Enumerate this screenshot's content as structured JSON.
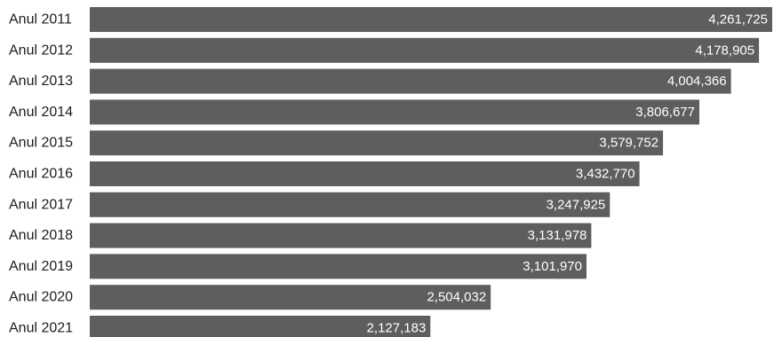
{
  "chart_data": {
    "type": "bar",
    "orientation": "horizontal",
    "categories": [
      "Anul 2011",
      "Anul 2012",
      "Anul 2013",
      "Anul 2014",
      "Anul 2015",
      "Anul 2016",
      "Anul 2017",
      "Anul 2018",
      "Anul 2019",
      "Anul 2020",
      "Anul 2021"
    ],
    "values": [
      4261725,
      4178905,
      4004366,
      3806677,
      3579752,
      3432770,
      3247925,
      3131978,
      3101970,
      2504032,
      2127183
    ],
    "data_labels": [
      "4,261,725",
      "4,178,905",
      "4,004,366",
      "3,806,677",
      "3,579,752",
      "3,432,770",
      "3,247,925",
      "3,131,978",
      "3,101,970",
      "2,504,032",
      "2,127,183"
    ],
    "xlim": [
      0,
      4261725
    ],
    "grid": false,
    "bar_color": "#5e5e5e",
    "label_color": "#1c1c1c",
    "data_label_color": "#ffffff"
  }
}
